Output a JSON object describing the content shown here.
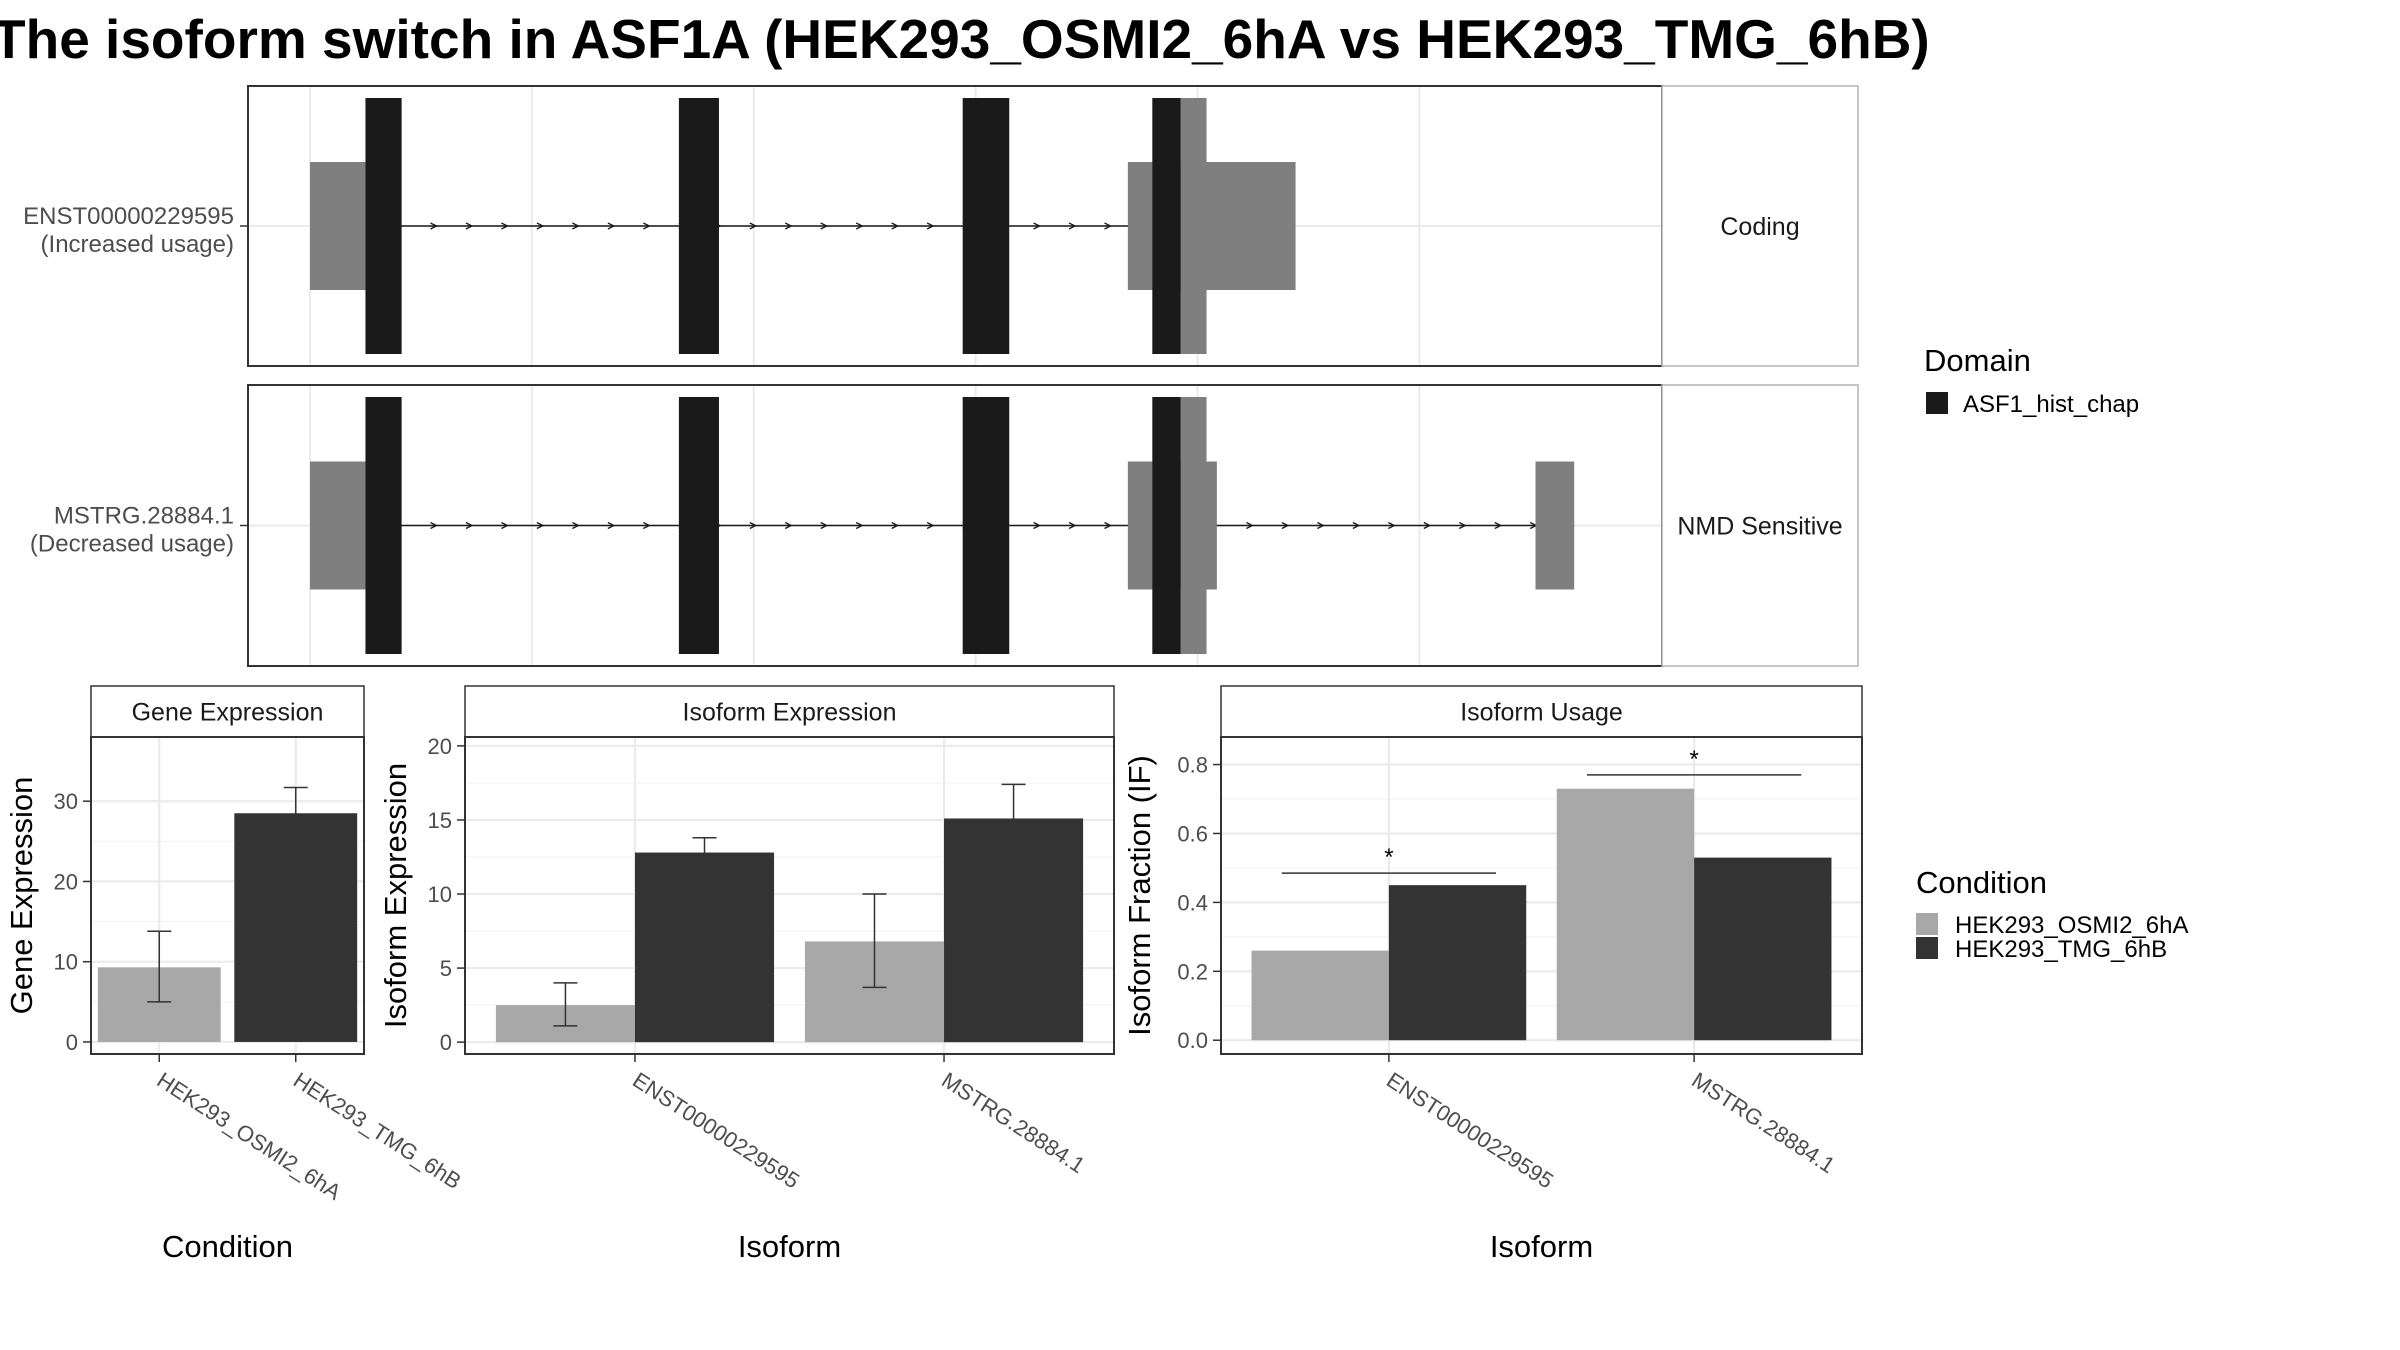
{
  "title": "The isoform switch in ASF1A (HEK293_OSMI2_6hA vs HEK293_TMG_6hB)",
  "colors": {
    "cond1": "#a8a8a8",
    "cond2": "#333333",
    "domain": "#1a1a1a",
    "utr": "#7f7f7f",
    "grid": "#ebebeb",
    "panel_border": "#333333"
  },
  "transcripts": [
    {
      "id": "ENST00000229595",
      "usage": "(Increased usage)",
      "category": "Coding",
      "utr_blocks": [
        [
          0.0,
          0.043
        ],
        [
          0.634,
          0.764
        ]
      ],
      "cds_blocks": [
        [
          0.043,
          0.071
        ],
        [
          0.286,
          0.317
        ],
        [
          0.506,
          0.542
        ],
        [
          0.653,
          0.675
        ]
      ],
      "domain_blocks": [
        [
          0.043,
          0.071
        ],
        [
          0.286,
          0.317
        ],
        [
          0.506,
          0.542
        ],
        [
          0.653,
          0.675
        ]
      ],
      "intron_span": [
        0.043,
        0.653
      ]
    },
    {
      "id": "MSTRG.28884.1",
      "usage": "(Decreased usage)",
      "category": "NMD Sensitive",
      "utr_blocks": [
        [
          0.0,
          0.043
        ],
        [
          0.634,
          0.703
        ],
        [
          0.95,
          0.98
        ]
      ],
      "cds_blocks": [
        [
          0.043,
          0.071
        ],
        [
          0.286,
          0.317
        ],
        [
          0.506,
          0.542
        ],
        [
          0.653,
          0.675
        ]
      ],
      "domain_blocks": [
        [
          0.043,
          0.071
        ],
        [
          0.286,
          0.317
        ],
        [
          0.506,
          0.542
        ],
        [
          0.653,
          0.675
        ]
      ],
      "intron_span": [
        0.043,
        0.98
      ]
    }
  ],
  "legend_domain": {
    "title": "Domain",
    "items": [
      {
        "label": "ASF1_hist_chap",
        "color": "#1a1a1a"
      }
    ]
  },
  "legend_condition": {
    "title": "Condition",
    "items": [
      {
        "label": "HEK293_OSMI2_6hA",
        "color": "#a8a8a8"
      },
      {
        "label": "HEK293_TMG_6hB",
        "color": "#333333"
      }
    ]
  },
  "chart_data": [
    {
      "type": "bar",
      "strip": "Gene Expression",
      "xlabel": "Condition",
      "ylabel": "Gene Expression",
      "ylim": [
        -1.5,
        38
      ],
      "yticks": [
        0,
        10,
        20,
        30
      ],
      "categories": [
        "HEK293_OSMI2_6hA",
        "HEK293_TMG_6hB"
      ],
      "series": [
        {
          "name": "HEK293_OSMI2_6hA",
          "values": [
            9.3,
            null
          ],
          "err_low": [
            5.0,
            null
          ],
          "err_high": [
            13.8,
            null
          ]
        },
        {
          "name": "HEK293_TMG_6hB",
          "values": [
            null,
            28.5
          ],
          "err_low": [
            null,
            25.2
          ],
          "err_high": [
            null,
            31.7
          ]
        }
      ]
    },
    {
      "type": "bar",
      "strip": "Isoform Expression",
      "xlabel": "Isoform",
      "ylabel": "Isoform Expression",
      "ylim": [
        -0.8,
        20.6
      ],
      "yticks": [
        0,
        5,
        10,
        15,
        20
      ],
      "categories": [
        "ENST00000229595",
        "MSTRG.28884.1"
      ],
      "series": [
        {
          "name": "HEK293_OSMI2_6hA",
          "values": [
            2.5,
            6.8
          ],
          "err_low": [
            1.1,
            3.7
          ],
          "err_high": [
            4.0,
            10.0
          ]
        },
        {
          "name": "HEK293_TMG_6hB",
          "values": [
            12.8,
            15.1
          ],
          "err_low": [
            11.8,
            12.8
          ],
          "err_high": [
            13.8,
            17.4
          ]
        }
      ]
    },
    {
      "type": "bar",
      "strip": "Isoform Usage",
      "xlabel": "Isoform",
      "ylabel": "Isoform Fraction (IF)",
      "ylim": [
        -0.04,
        0.88
      ],
      "yticks": [
        0.0,
        0.2,
        0.4,
        0.6,
        0.8
      ],
      "categories": [
        "ENST00000229595",
        "MSTRG.28884.1"
      ],
      "series": [
        {
          "name": "HEK293_OSMI2_6hA",
          "values": [
            0.26,
            0.73
          ]
        },
        {
          "name": "HEK293_TMG_6hB",
          "values": [
            0.45,
            0.53
          ]
        }
      ],
      "significance": [
        {
          "category": "ENST00000229595",
          "label": "*",
          "y": 0.485
        },
        {
          "category": "MSTRG.28884.1",
          "label": "*",
          "y": 0.77
        }
      ]
    }
  ]
}
